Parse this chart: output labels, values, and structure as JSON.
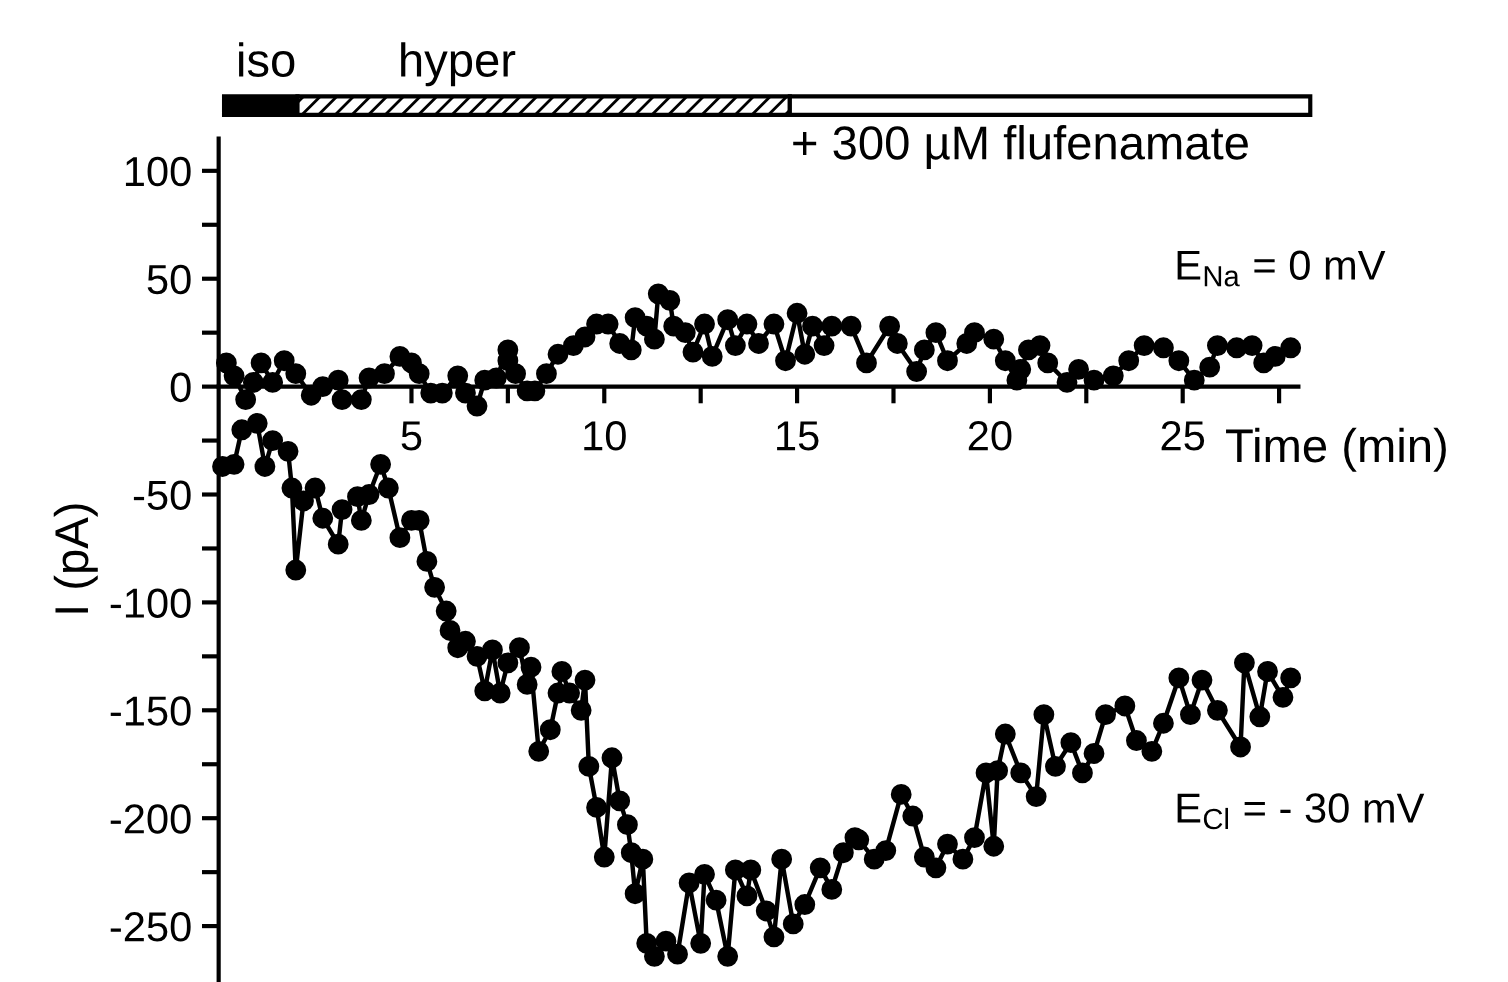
{
  "chart_data": {
    "type": "line",
    "xlabel": "Time (min)",
    "ylabel": "I (pA)",
    "xlim": [
      0,
      28
    ],
    "ylim": [
      -275,
      115
    ],
    "xticks": [
      {
        "value": 2.5,
        "label": null
      },
      5,
      {
        "value": 7.5,
        "label": null
      },
      10,
      {
        "value": 12.5,
        "label": null
      },
      15,
      {
        "value": 17.5,
        "label": null
      },
      20,
      {
        "value": 22.5,
        "label": null
      },
      25,
      {
        "value": 27.5,
        "label": null
      }
    ],
    "yticks": [
      100,
      {
        "value": 75,
        "label": null
      },
      50,
      {
        "value": 25,
        "label": null
      },
      0,
      {
        "value": -25,
        "label": null
      },
      -50,
      {
        "value": -75,
        "label": null
      },
      -100,
      {
        "value": -125,
        "label": null
      },
      -150,
      {
        "value": -175,
        "label": null
      },
      -200,
      {
        "value": -225,
        "label": null
      },
      -250
    ],
    "marker": "circle",
    "line_style": "solid",
    "grid": false,
    "legend": false,
    "annotations": [
      "iso",
      "hyper",
      "+ 300 µM flufenamate",
      "E$_{Na}$ = 0 mV",
      "E$_{Cl}$ = - 30 mV"
    ],
    "series": [
      {
        "color": "#000000",
        "x": [
          0.2,
          0.4,
          0.7,
          0.9,
          1.1,
          1.4,
          1.7,
          2.0,
          2.4,
          2.7,
          3.1,
          3.2,
          3.7,
          3.9,
          4.3,
          4.7,
          5.0,
          5.2,
          5.5,
          5.8,
          6.2,
          6.4,
          6.7,
          6.9,
          7.2,
          7.5,
          7.5,
          7.7,
          8.0,
          8.2,
          8.5,
          8.8,
          9.2,
          9.5,
          9.8,
          10.1,
          10.4,
          10.7,
          10.8,
          11.1,
          11.3,
          11.4,
          11.7,
          11.8,
          12.1,
          12.3,
          12.6,
          12.8,
          13.2,
          13.4,
          13.7,
          14.0,
          14.4,
          14.7,
          15.0,
          15.2,
          15.4,
          15.7,
          15.9,
          16.4,
          16.8,
          17.4,
          17.6,
          18.1,
          18.3,
          18.6,
          18.9,
          19.4,
          19.6,
          20.1,
          20.4,
          20.7,
          20.8,
          21.0,
          21.3,
          21.5,
          22.0,
          22.3,
          22.7,
          23.2,
          23.6,
          24.0,
          24.5,
          24.9,
          25.3,
          25.7,
          25.9,
          26.4,
          26.8,
          27.1,
          27.4,
          27.8
        ],
        "values": [
          11,
          5,
          -6,
          2,
          11,
          2,
          12,
          6,
          -4,
          0,
          3,
          -6,
          -6,
          4,
          6,
          14,
          11,
          6,
          -3,
          -3,
          5,
          -3,
          -9,
          3,
          4,
          17,
          12,
          6,
          -2,
          -2,
          6,
          15,
          19,
          23,
          29,
          29,
          20,
          17,
          32,
          28,
          22,
          43,
          40,
          28,
          25,
          16,
          29,
          14,
          31,
          19,
          29,
          20,
          29,
          12,
          34,
          15,
          28,
          19,
          28,
          28,
          11,
          28,
          20,
          7,
          17,
          25,
          12,
          20,
          25,
          22,
          12,
          3,
          8,
          17,
          19,
          11,
          2,
          8,
          3,
          5,
          12,
          19,
          18,
          12,
          3,
          9,
          19,
          18,
          19,
          11,
          14,
          18
        ]
      },
      {
        "color": "#000000",
        "x": [
          0.1,
          0.4,
          0.6,
          1.0,
          1.2,
          1.4,
          1.8,
          1.9,
          2.0,
          2.2,
          2.5,
          2.7,
          3.1,
          3.2,
          3.6,
          3.7,
          3.9,
          4.2,
          4.4,
          4.7,
          5.0,
          5.2,
          5.4,
          5.6,
          5.9,
          6.0,
          6.2,
          6.4,
          6.7,
          6.9,
          7.1,
          7.3,
          7.5,
          7.8,
          8.0,
          8.1,
          8.3,
          8.6,
          8.8,
          8.9,
          9.1,
          9.4,
          9.5,
          9.6,
          9.8,
          10.0,
          10.2,
          10.4,
          10.6,
          10.7,
          10.8,
          11.0,
          11.1,
          11.3,
          11.6,
          11.9,
          12.2,
          12.5,
          12.6,
          12.9,
          13.2,
          13.4,
          13.7,
          13.8,
          14.2,
          14.4,
          14.6,
          14.9,
          15.2,
          15.6,
          15.9,
          16.2,
          16.5,
          16.6,
          17.0,
          17.3,
          17.7,
          18.0,
          18.3,
          18.6,
          18.9,
          19.3,
          19.6,
          19.9,
          20.1,
          20.2,
          20.4,
          20.8,
          21.2,
          21.4,
          21.7,
          22.1,
          22.4,
          22.7,
          23.0,
          23.5,
          23.8,
          24.2,
          24.5,
          24.9,
          25.2,
          25.5,
          25.9,
          26.5,
          26.6,
          27.0,
          27.2,
          27.6,
          27.8
        ],
        "values": [
          -37,
          -36,
          -20,
          -17,
          -37,
          -25,
          -30,
          -47,
          -85,
          -53,
          -47,
          -61,
          -73,
          -57,
          -51,
          -62,
          -50,
          -36,
          -47,
          -70,
          -62,
          -62,
          -81,
          -93,
          -104,
          -113,
          -121,
          -118,
          -125,
          -141,
          -122,
          -142,
          -128,
          -121,
          -138,
          -130,
          -169,
          -159,
          -142,
          -132,
          -142,
          -150,
          -136,
          -176,
          -195,
          -218,
          -172,
          -192,
          -203,
          -216,
          -235,
          -219,
          -258,
          -264,
          -257,
          -263,
          -230,
          -258,
          -226,
          -238,
          -264,
          -224,
          -236,
          -224,
          -243,
          -255,
          -219,
          -249,
          -240,
          -223,
          -233,
          -216,
          -209,
          -210,
          -219,
          -215,
          -189,
          -199,
          -218,
          -223,
          -212,
          -219,
          -209,
          -179,
          -213,
          -178,
          -161,
          -179,
          -190,
          -152,
          -176,
          -165,
          -179,
          -170,
          -152,
          -148,
          -164,
          -169,
          -156,
          -135,
          -152,
          -136,
          -150,
          -167,
          -128,
          -153,
          -132,
          -144,
          -135
        ]
      }
    ]
  }
}
